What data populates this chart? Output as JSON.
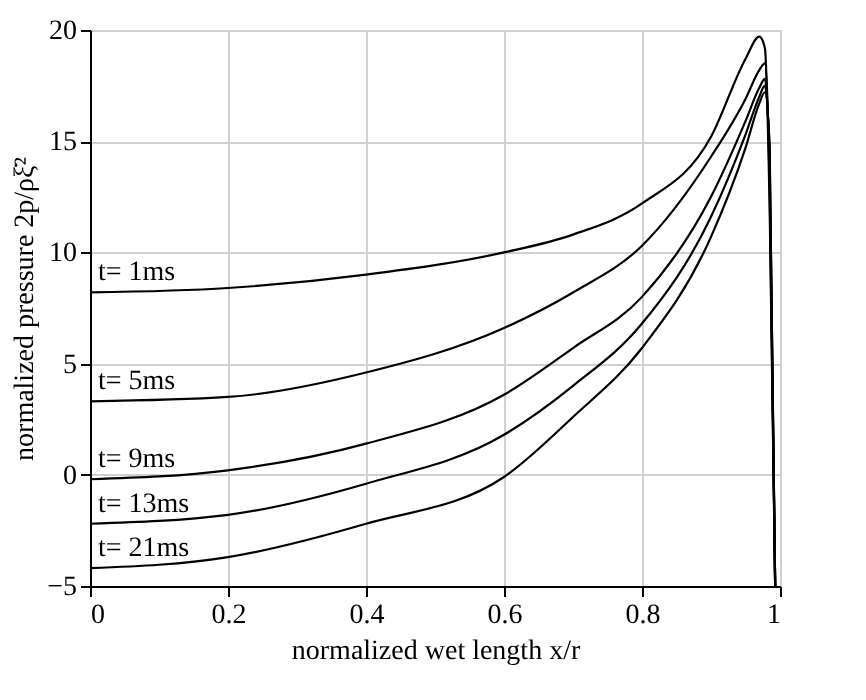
{
  "chart_data": {
    "type": "line",
    "xlabel": "normalized wet length x/r",
    "ylabel": "normalized pressure 2p/ρξ̇²",
    "xlim": [
      0,
      1
    ],
    "ylim": [
      -5,
      20
    ],
    "xticks": [
      0,
      0.2,
      0.4,
      0.6,
      0.8,
      1
    ],
    "yticks": [
      -5,
      0,
      5,
      10,
      15,
      20
    ],
    "grid": true,
    "marker": "none",
    "line_style": "solid",
    "x": [
      0,
      0.2,
      0.4,
      0.6,
      0.7,
      0.8,
      0.9,
      0.95,
      0.97,
      0.978,
      0.985,
      0.993
    ],
    "series": [
      {
        "name": "t= 1ms",
        "color": "#000000",
        "values": [
          8.2,
          8.4,
          9.0,
          10.0,
          10.8,
          12.2,
          15.2,
          18.7,
          19.7,
          19.2,
          12,
          -5
        ]
      },
      {
        "name": "t= 5ms",
        "color": "#000000",
        "values": [
          3.3,
          3.5,
          4.6,
          6.6,
          8.2,
          10.3,
          14.3,
          16.9,
          18.2,
          18.5,
          13,
          -5
        ]
      },
      {
        "name": "t= 9ms",
        "color": "#000000",
        "values": [
          -0.2,
          0.2,
          1.4,
          3.6,
          5.7,
          8.0,
          12.5,
          15.9,
          17.4,
          17.8,
          14,
          -5
        ]
      },
      {
        "name": "t= 13ms",
        "color": "#000000",
        "values": [
          -2.2,
          -1.8,
          -0.4,
          1.8,
          4.0,
          6.8,
          11.6,
          15.3,
          17.0,
          17.5,
          14.5,
          -5
        ]
      },
      {
        "name": "t= 21ms",
        "color": "#000000",
        "values": [
          -4.2,
          -3.7,
          -2.2,
          -0.1,
          2.6,
          5.7,
          10.7,
          14.7,
          16.7,
          17.2,
          14.8,
          -5
        ]
      }
    ]
  }
}
